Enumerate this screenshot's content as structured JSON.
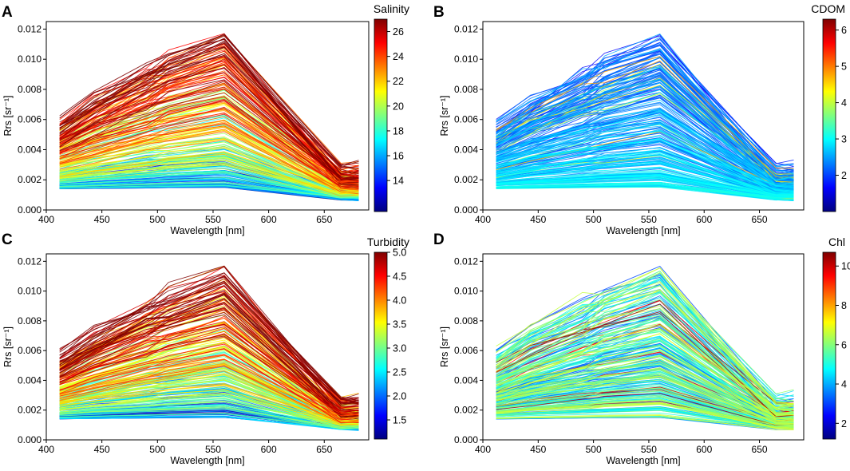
{
  "chart_data": [
    {
      "panel": "A",
      "type": "line",
      "title": "",
      "xlabel": "Wavelength [nm]",
      "ylabel": "Rrs [sr⁻¹]",
      "xlim": [
        400,
        690
      ],
      "ylim": [
        0,
        0.0125
      ],
      "xticks": [
        400,
        450,
        500,
        550,
        600,
        650
      ],
      "xtick_labels": [
        "400",
        "450",
        "500",
        "550",
        "600",
        "650"
      ],
      "yticks": [
        0,
        0.002,
        0.004,
        0.006,
        0.008,
        0.01,
        0.012
      ],
      "ytick_labels": [
        "0.000",
        "0.002",
        "0.004",
        "0.006",
        "0.008",
        "0.010",
        "0.012"
      ],
      "wavelengths": [
        412,
        443,
        490,
        510,
        560,
        665,
        681
      ],
      "colorbar": {
        "label": "Salinity",
        "min": 11.5,
        "max": 27,
        "ticks": [
          14,
          16,
          18,
          20,
          22,
          24,
          26
        ],
        "tick_labels": [
          "14",
          "16",
          "18",
          "20",
          "22",
          "24",
          "26"
        ]
      },
      "color_trend": "positive",
      "series_count": 260,
      "seed": 11
    },
    {
      "panel": "B",
      "type": "line",
      "title": "",
      "xlabel": "Wavelength [nm]",
      "ylabel": "Rrs [sr⁻¹]",
      "xlim": [
        400,
        690
      ],
      "ylim": [
        0,
        0.0125
      ],
      "xticks": [
        400,
        450,
        500,
        550,
        600,
        650
      ],
      "xtick_labels": [
        "400",
        "450",
        "500",
        "550",
        "600",
        "650"
      ],
      "yticks": [
        0,
        0.002,
        0.004,
        0.006,
        0.008,
        0.01,
        0.012
      ],
      "ytick_labels": [
        "0.000",
        "0.002",
        "0.004",
        "0.006",
        "0.008",
        "0.010",
        "0.012"
      ],
      "wavelengths": [
        412,
        443,
        490,
        510,
        560,
        665,
        681
      ],
      "colorbar": {
        "label": "CDOM",
        "min": 1.0,
        "max": 6.3,
        "ticks": [
          2,
          3,
          4,
          5,
          6
        ],
        "tick_labels": [
          "2",
          "3",
          "4",
          "5",
          "6"
        ]
      },
      "color_trend": "low",
      "series_count": 260,
      "seed": 23
    },
    {
      "panel": "C",
      "type": "line",
      "title": "",
      "xlabel": "Wavelength [nm]",
      "ylabel": "Rrs [sr⁻¹]",
      "xlim": [
        400,
        690
      ],
      "ylim": [
        0,
        0.0125
      ],
      "xticks": [
        400,
        450,
        500,
        550,
        600,
        650
      ],
      "xtick_labels": [
        "400",
        "450",
        "500",
        "550",
        "600",
        "650"
      ],
      "yticks": [
        0,
        0.002,
        0.004,
        0.006,
        0.008,
        0.01,
        0.012
      ],
      "ytick_labels": [
        "0.000",
        "0.002",
        "0.004",
        "0.006",
        "0.008",
        "0.010",
        "0.012"
      ],
      "wavelengths": [
        412,
        443,
        490,
        510,
        560,
        665,
        681
      ],
      "colorbar": {
        "label": "Turbidity",
        "min": 1.1,
        "max": 5.0,
        "ticks": [
          1.5,
          2.0,
          2.5,
          3.0,
          3.5,
          4.0,
          4.5,
          5.0
        ],
        "tick_labels": [
          "1.5",
          "2.0",
          "2.5",
          "3.0",
          "3.5",
          "4.0",
          "4.5",
          "5.0"
        ]
      },
      "color_trend": "positive",
      "series_count": 260,
      "seed": 37
    },
    {
      "panel": "D",
      "type": "line",
      "title": "",
      "xlabel": "Wavelength [nm]",
      "ylabel": "Rrs [sr⁻¹]",
      "xlim": [
        400,
        690
      ],
      "ylim": [
        0,
        0.0125
      ],
      "xticks": [
        400,
        450,
        500,
        550,
        600,
        650
      ],
      "xtick_labels": [
        "400",
        "450",
        "500",
        "550",
        "600",
        "650"
      ],
      "yticks": [
        0,
        0.002,
        0.004,
        0.006,
        0.008,
        0.01,
        0.012
      ],
      "ytick_labels": [
        "0.000",
        "0.002",
        "0.004",
        "0.006",
        "0.008",
        "0.010",
        "0.012"
      ],
      "wavelengths": [
        412,
        443,
        490,
        510,
        560,
        665,
        681
      ],
      "colorbar": {
        "label": "Chl",
        "min": 1.2,
        "max": 10.7,
        "ticks": [
          2,
          4,
          6,
          8,
          10
        ],
        "tick_labels": [
          "2",
          "4",
          "6",
          "8",
          "10"
        ]
      },
      "color_trend": "mixed",
      "series_count": 260,
      "seed": 51
    }
  ],
  "colormap": [
    "#00007f",
    "#0000ff",
    "#007fff",
    "#00ffff",
    "#7fff7f",
    "#ffff00",
    "#ff7f00",
    "#ff0000",
    "#7f0000"
  ]
}
